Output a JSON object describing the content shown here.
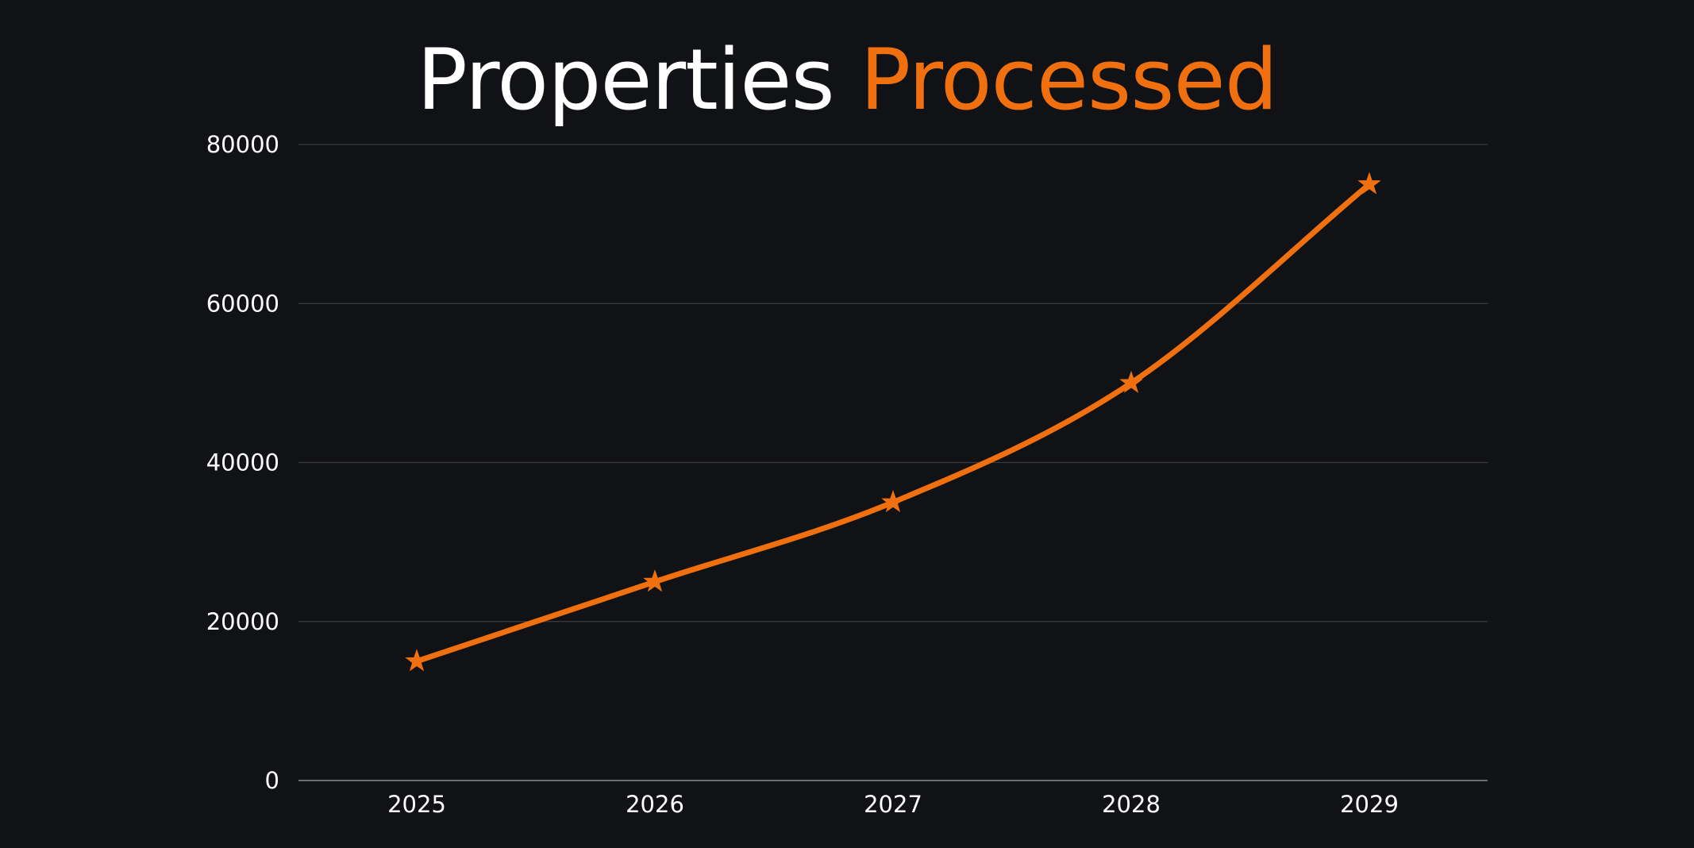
{
  "title": {
    "part1": "Properties",
    "part2": "Processed"
  },
  "colors": {
    "background": "#111216",
    "accent": "#f07010",
    "grid": "#3a3b40",
    "text": "#ffffff"
  },
  "chart_data": {
    "type": "line",
    "title": "Properties Processed",
    "xlabel": "",
    "ylabel": "",
    "categories": [
      "2025",
      "2026",
      "2027",
      "2028",
      "2029"
    ],
    "series": [
      {
        "values": [
          15000,
          25000,
          35000,
          50000,
          75000
        ],
        "marker": "star",
        "color": "#f07010",
        "smooth": true
      }
    ],
    "ylim": [
      0,
      80000
    ],
    "yticks": [
      "0",
      "20000",
      "40000",
      "60000",
      "80000"
    ],
    "grid": true,
    "legend": "none"
  }
}
